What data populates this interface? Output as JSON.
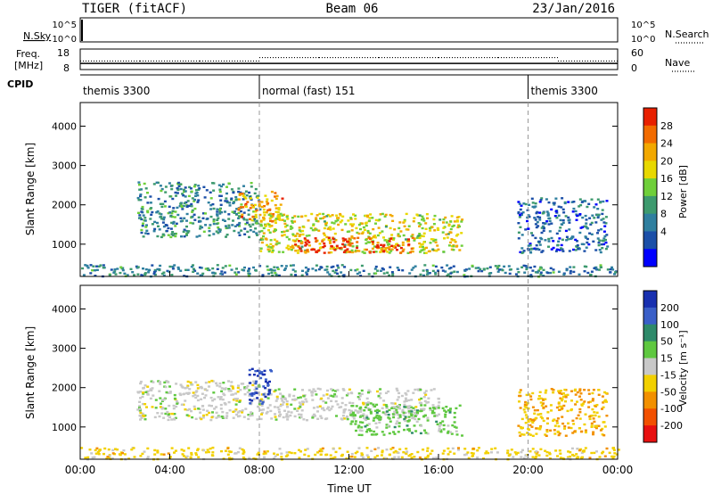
{
  "header": {
    "radar": "TIGER (fitACF)",
    "beam": "Beam 06",
    "date": "23/Jan/2016"
  },
  "nsky": {
    "label": "N.Sky",
    "ticks_left": [
      "10^5",
      "10^0"
    ],
    "ticks_right": [
      "10^5",
      "10^0"
    ],
    "right_label": "N.Search"
  },
  "freq": {
    "label_line1": "Freq.",
    "label_line2": "[MHz]",
    "ticks_left": [
      "18",
      "8"
    ],
    "ticks_right": [
      "60",
      "0"
    ],
    "right_label": "Nave",
    "values_mhz": [
      11,
      11,
      11,
      11,
      11,
      11,
      11,
      11,
      11
    ],
    "nave": [
      25,
      25,
      25,
      35,
      35,
      35,
      35,
      35,
      25
    ]
  },
  "cpid": {
    "label": "CPID",
    "segments": [
      {
        "start_hour": 0,
        "label": "themis 3300"
      },
      {
        "start_hour": 8,
        "label": "normal (fast) 151"
      },
      {
        "start_hour": 20,
        "label": "themis 3300"
      }
    ]
  },
  "chart_data": [
    {
      "type": "heatmap",
      "parameter": "Power",
      "ylabel": "Slant Range [km]",
      "ylim": [
        180,
        4600
      ],
      "yticks": [
        "1000",
        "2000",
        "3000",
        "4000"
      ],
      "ytick_values": [
        1000,
        2000,
        3000,
        4000
      ],
      "colorbar_label": "Power [dB]",
      "colorbar_ticks": [
        "28",
        "24",
        "20",
        "16",
        "12",
        "8",
        "4"
      ],
      "colorbar_range": [
        0,
        30
      ],
      "colors": [
        "#0000ff",
        "#1b4fa8",
        "#2f7f9f",
        "#3d9a6e",
        "#6fcf3a",
        "#e8d800",
        "#f2a800",
        "#f26b00",
        "#e82000"
      ],
      "echo_regions": [
        {
          "t_start": 2.5,
          "t_end": 8.0,
          "r_start": 1200,
          "r_end": 2600,
          "value": 10
        },
        {
          "t_start": 7.0,
          "t_end": 9.0,
          "r_start": 1600,
          "r_end": 2400,
          "value": 22
        },
        {
          "t_start": 8.0,
          "t_end": 17.0,
          "r_start": 800,
          "r_end": 1800,
          "value": 18
        },
        {
          "t_start": 9.5,
          "t_end": 15.0,
          "r_start": 800,
          "r_end": 1200,
          "value": 27
        },
        {
          "t_start": 19.5,
          "t_end": 23.5,
          "r_start": 800,
          "r_end": 2200,
          "value": 7
        },
        {
          "t_start": 0.0,
          "t_end": 24.0,
          "r_start": 200,
          "r_end": 500,
          "value": 9
        }
      ]
    },
    {
      "type": "heatmap",
      "parameter": "Velocity",
      "ylabel": "Slant Range [km]",
      "ylim": [
        180,
        4600
      ],
      "yticks": [
        "1000",
        "2000",
        "3000",
        "4000"
      ],
      "ytick_values": [
        1000,
        2000,
        3000,
        4000
      ],
      "xticks": [
        "00:00",
        "04:00",
        "08:00",
        "12:00",
        "16:00",
        "20:00",
        "00:00"
      ],
      "xtick_values": [
        0,
        4,
        8,
        12,
        16,
        20,
        24
      ],
      "xlabel": "Time UT",
      "colorbar_label": "Velocity [m s⁻¹]",
      "colorbar_ticks": [
        "200",
        "100",
        "50",
        "15",
        "-15",
        "-50",
        "-100",
        "-200"
      ],
      "colors": [
        "#1830b0",
        "#3a5fc8",
        "#2e8a6a",
        "#5fc840",
        "#c8c8c8",
        "#f2d000",
        "#f29000",
        "#f25000",
        "#e81010"
      ],
      "echo_regions": [
        {
          "t_start": 2.5,
          "t_end": 8.0,
          "r_start": 1200,
          "r_end": 2200,
          "value": 0
        },
        {
          "t_start": 8.0,
          "t_end": 16.0,
          "r_start": 1200,
          "r_end": 2000,
          "value": 0
        },
        {
          "t_start": 12.0,
          "t_end": 17.0,
          "r_start": 800,
          "r_end": 1600,
          "value": 40
        },
        {
          "t_start": 7.5,
          "t_end": 8.5,
          "r_start": 1600,
          "r_end": 2500,
          "value": 150
        },
        {
          "t_start": 0.0,
          "t_end": 24.0,
          "r_start": 200,
          "r_end": 500,
          "value": -40
        },
        {
          "t_start": 19.5,
          "t_end": 23.5,
          "r_start": 800,
          "r_end": 2000,
          "value": -60
        }
      ]
    }
  ]
}
